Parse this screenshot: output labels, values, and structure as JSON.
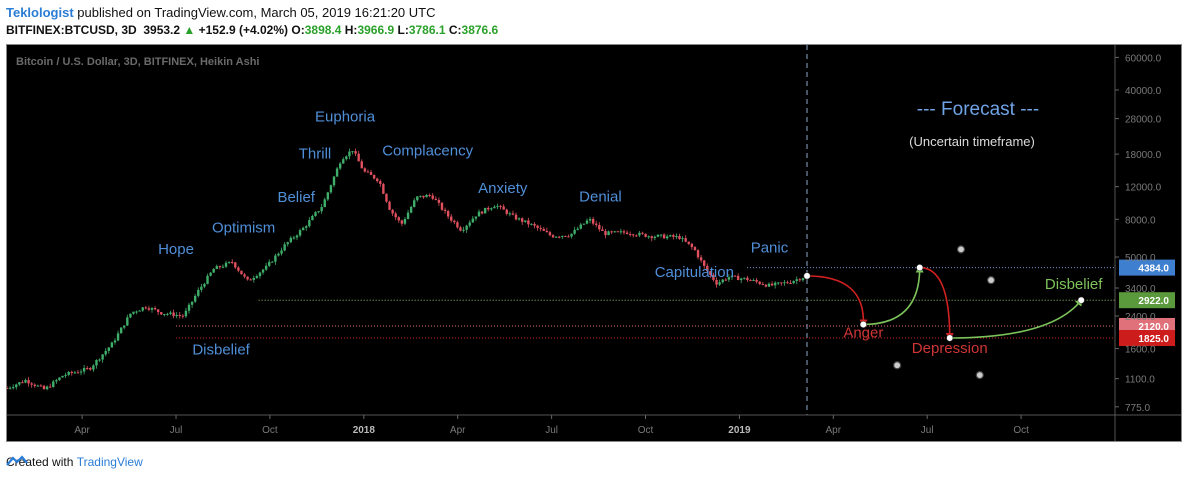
{
  "header": {
    "author": "Teklologist",
    "published_text": "published on TradingView.com, March 05, 2019 16:21:20 UTC",
    "symbol": "BITFINEX:BTCUSD, 3D",
    "last": "3953.2",
    "change": "+152.9 (+4.02%)",
    "o_label": "O:",
    "o": "3898.4",
    "h_label": "H:",
    "h": "3966.9",
    "l_label": "L:",
    "l": "3786.1",
    "c_label": "C:",
    "c": "3876.6",
    "up_arrow": "▲"
  },
  "footer": {
    "created_with": "Created with",
    "brand": "TradingView"
  },
  "colors": {
    "up": "#3fae6a",
    "down": "#e0505e",
    "label_blue": "#4f8fd8",
    "anger_red": "#d02020",
    "disbelief_green": "#7cc35a"
  },
  "chart_data": {
    "type": "candlestick",
    "title": "Bitcoin / U.S. Dollar, 3D, BITFINEX, Heikin Ashi",
    "y_scale": "log",
    "ylim": [
      700,
      70000
    ],
    "y_ticks": [
      {
        "value": 60000,
        "label": "60000.0"
      },
      {
        "value": 40000,
        "label": "40000.0"
      },
      {
        "value": 28000,
        "label": "28000.0"
      },
      {
        "value": 18000,
        "label": "18000.0"
      },
      {
        "value": 12000,
        "label": "12000.0"
      },
      {
        "value": 8000,
        "label": "8000.0"
      },
      {
        "value": 5000,
        "label": "5000.0"
      },
      {
        "value": 3400,
        "label": "3400.0"
      },
      {
        "value": 2400,
        "label": "2400.0"
      },
      {
        "value": 1600,
        "label": "1600.0"
      },
      {
        "value": 1100,
        "label": "1100.0"
      },
      {
        "value": 775,
        "label": "775.0"
      }
    ],
    "x_ticks": [
      {
        "t": 2017.25,
        "label": "Apr"
      },
      {
        "t": 2017.5,
        "label": "Jul"
      },
      {
        "t": 2017.75,
        "label": "Oct"
      },
      {
        "t": 2018.0,
        "label": "2018"
      },
      {
        "t": 2018.25,
        "label": "Apr"
      },
      {
        "t": 2018.5,
        "label": "Jul"
      },
      {
        "t": 2018.75,
        "label": "Oct"
      },
      {
        "t": 2019.0,
        "label": "2019"
      },
      {
        "t": 2019.25,
        "label": "Apr"
      },
      {
        "t": 2019.5,
        "label": "Jul"
      },
      {
        "t": 2019.75,
        "label": "Oct"
      }
    ],
    "xlim": [
      2017.05,
      2020.0
    ],
    "forecast_divider_t": 2019.18,
    "price_path": [
      [
        2017.05,
        980
      ],
      [
        2017.1,
        1080
      ],
      [
        2017.15,
        960
      ],
      [
        2017.2,
        1150
      ],
      [
        2017.27,
        1250
      ],
      [
        2017.33,
        1700
      ],
      [
        2017.38,
        2500
      ],
      [
        2017.42,
        2700
      ],
      [
        2017.46,
        2500
      ],
      [
        2017.52,
        2400
      ],
      [
        2017.56,
        3300
      ],
      [
        2017.6,
        4300
      ],
      [
        2017.65,
        4700
      ],
      [
        2017.69,
        3700
      ],
      [
        2017.74,
        4400
      ],
      [
        2017.79,
        5800
      ],
      [
        2017.84,
        7200
      ],
      [
        2017.89,
        9500
      ],
      [
        2017.94,
        17000
      ],
      [
        2017.97,
        19000
      ],
      [
        2018.0,
        14500
      ],
      [
        2018.04,
        13000
      ],
      [
        2018.07,
        9000
      ],
      [
        2018.1,
        7500
      ],
      [
        2018.14,
        10500
      ],
      [
        2018.18,
        10800
      ],
      [
        2018.22,
        8500
      ],
      [
        2018.26,
        7000
      ],
      [
        2018.3,
        8500
      ],
      [
        2018.35,
        9600
      ],
      [
        2018.4,
        8200
      ],
      [
        2018.45,
        7400
      ],
      [
        2018.5,
        6500
      ],
      [
        2018.55,
        6600
      ],
      [
        2018.6,
        8000
      ],
      [
        2018.64,
        6700
      ],
      [
        2018.7,
        6800
      ],
      [
        2018.76,
        6500
      ],
      [
        2018.84,
        6400
      ],
      [
        2018.88,
        5500
      ],
      [
        2018.91,
        4300
      ],
      [
        2018.94,
        3600
      ],
      [
        2018.97,
        3900
      ],
      [
        2019.02,
        3800
      ],
      [
        2019.08,
        3500
      ],
      [
        2019.13,
        3650
      ],
      [
        2019.17,
        3900
      ]
    ],
    "levels": [
      {
        "value": 4384,
        "label": "4384.0",
        "color": "#3f7fd0",
        "line_color": "#7b9bd8"
      },
      {
        "value": 2922,
        "label": "2922.0",
        "color": "#5a9a3c",
        "line_color": "#9fc46a"
      },
      {
        "value": 2120,
        "label": "2120.0",
        "color": "#e0707a",
        "line_color": "#e0707a"
      },
      {
        "value": 1825,
        "label": "1825.0",
        "color": "#cc1c1c",
        "line_color": "#cc2222"
      }
    ],
    "cycle_labels": [
      {
        "text": "Hope",
        "t": 2017.5,
        "value": 5200
      },
      {
        "text": "Optimism",
        "t": 2017.68,
        "value": 6800
      },
      {
        "text": "Belief",
        "t": 2017.82,
        "value": 9900
      },
      {
        "text": "Thrill",
        "t": 2017.87,
        "value": 17000
      },
      {
        "text": "Euphoria",
        "t": 2017.95,
        "value": 27000
      },
      {
        "text": "Complacency",
        "t": 2018.17,
        "value": 17700
      },
      {
        "text": "Anxiety",
        "t": 2018.37,
        "value": 11100
      },
      {
        "text": "Denial",
        "t": 2018.63,
        "value": 10000
      },
      {
        "text": "Panic",
        "t": 2019.08,
        "value": 5300
      },
      {
        "text": "Capitulation",
        "t": 2018.88,
        "value": 3900
      },
      {
        "text": "Disbelief",
        "t": 2017.62,
        "value": 1490
      },
      {
        "text": "Disbelief",
        "t": 2019.89,
        "value": 3350
      }
    ],
    "forecast_labels": {
      "title": "--- Forecast ---",
      "subtitle": "(Uncertain timeframe)",
      "anger": "Anger",
      "depression": "Depression"
    },
    "forecast_points": [
      {
        "t": 2019.18,
        "value": 3953
      },
      {
        "t": 2019.33,
        "value": 2160
      },
      {
        "t": 2019.48,
        "value": 4384
      },
      {
        "t": 2019.56,
        "value": 1825
      },
      {
        "t": 2019.91,
        "value": 2922
      }
    ],
    "scatter_dots": [
      {
        "t": 2019.59,
        "value": 5500
      },
      {
        "t": 2019.67,
        "value": 3750
      },
      {
        "t": 2019.42,
        "value": 1300
      },
      {
        "t": 2019.64,
        "value": 1150
      }
    ]
  }
}
